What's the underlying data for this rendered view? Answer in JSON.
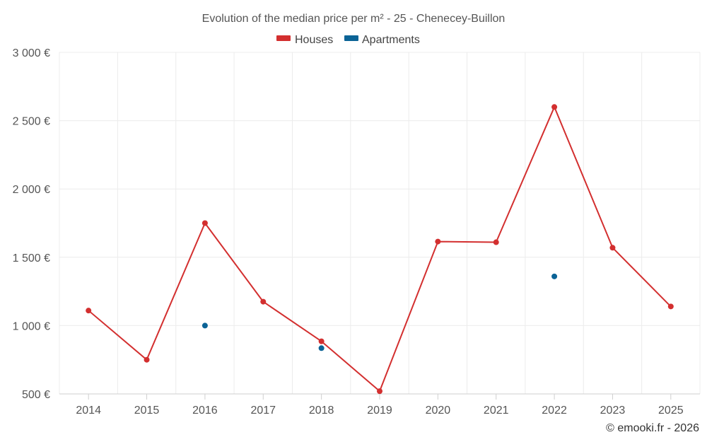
{
  "chart_data": {
    "type": "line",
    "title": "Evolution of the median price per m² - 25 - Chenecey-Buillon",
    "xlabel": "",
    "ylabel": "",
    "categories": [
      "2014",
      "2015",
      "2016",
      "2017",
      "2018",
      "2019",
      "2020",
      "2021",
      "2022",
      "2023",
      "2025"
    ],
    "ylim": [
      500,
      3000
    ],
    "y_ticks": [
      500,
      1000,
      1500,
      2000,
      2500,
      3000
    ],
    "y_tick_labels": [
      "500 €",
      "1 000 €",
      "1 500 €",
      "2 000 €",
      "2 500 €",
      "3 000 €"
    ],
    "grid": true,
    "legend": "top-center",
    "series": [
      {
        "name": "Houses",
        "color": "#d32f2f",
        "style": "line-with-markers",
        "values": [
          1110,
          750,
          1750,
          1175,
          885,
          520,
          1615,
          1610,
          2600,
          1570,
          1140
        ]
      },
      {
        "name": "Apartments",
        "color": "#0b6396",
        "style": "markers-only",
        "values": [
          null,
          null,
          1000,
          null,
          835,
          null,
          null,
          null,
          1360,
          null,
          null
        ]
      }
    ]
  },
  "credit": "© emooki.fr - 2026"
}
